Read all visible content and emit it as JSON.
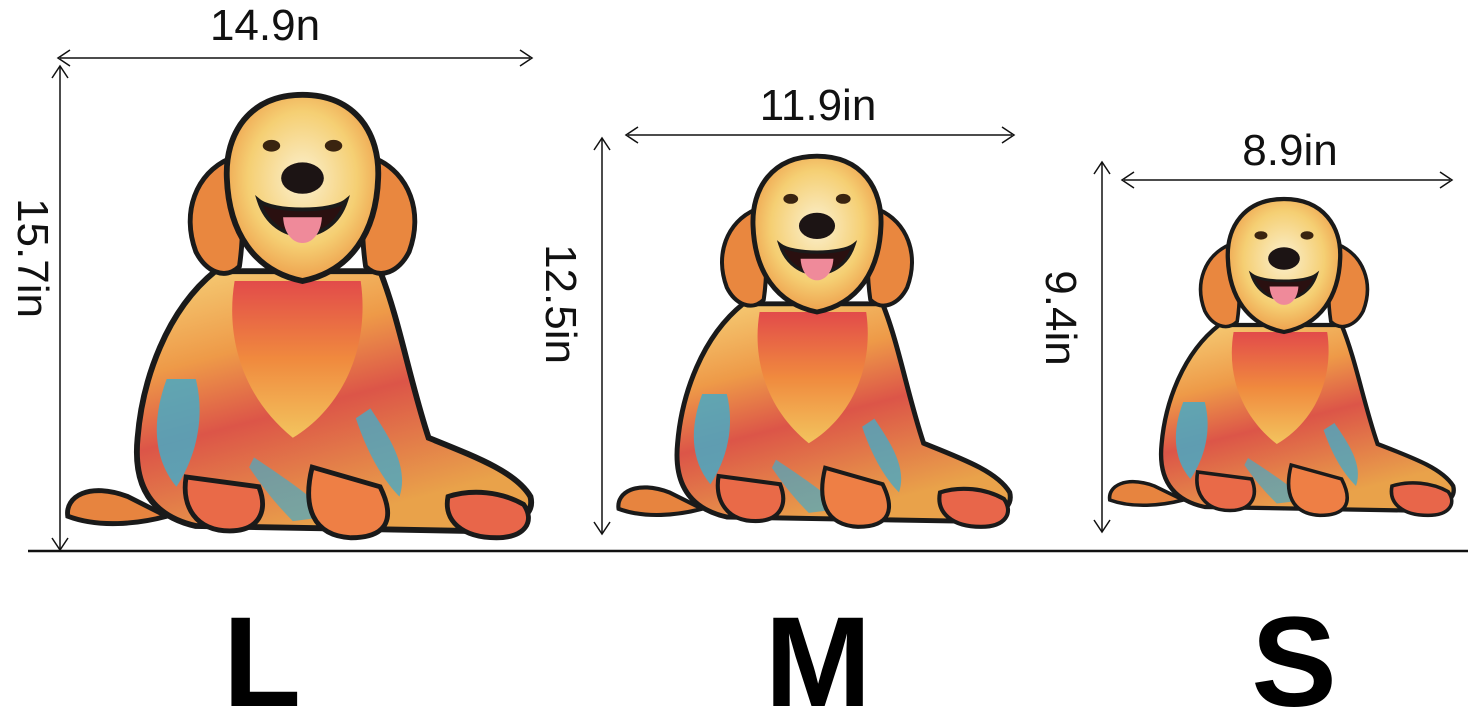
{
  "sizes": [
    {
      "letter": "L",
      "width_label": "14.9n",
      "height_label": "15.7in"
    },
    {
      "letter": "M",
      "width_label": "11.9in",
      "height_label": "12.5in"
    },
    {
      "letter": "S",
      "width_label": "8.9in",
      "height_label": "9.4in"
    }
  ],
  "colors": {
    "line": "#111111",
    "fur_gold": "#f2b24a",
    "fur_orange": "#e8743a",
    "fur_red": "#d9434a",
    "fur_teal": "#49a9c4",
    "fur_cream": "#f6e6b4",
    "outline": "#1a1a1a"
  }
}
